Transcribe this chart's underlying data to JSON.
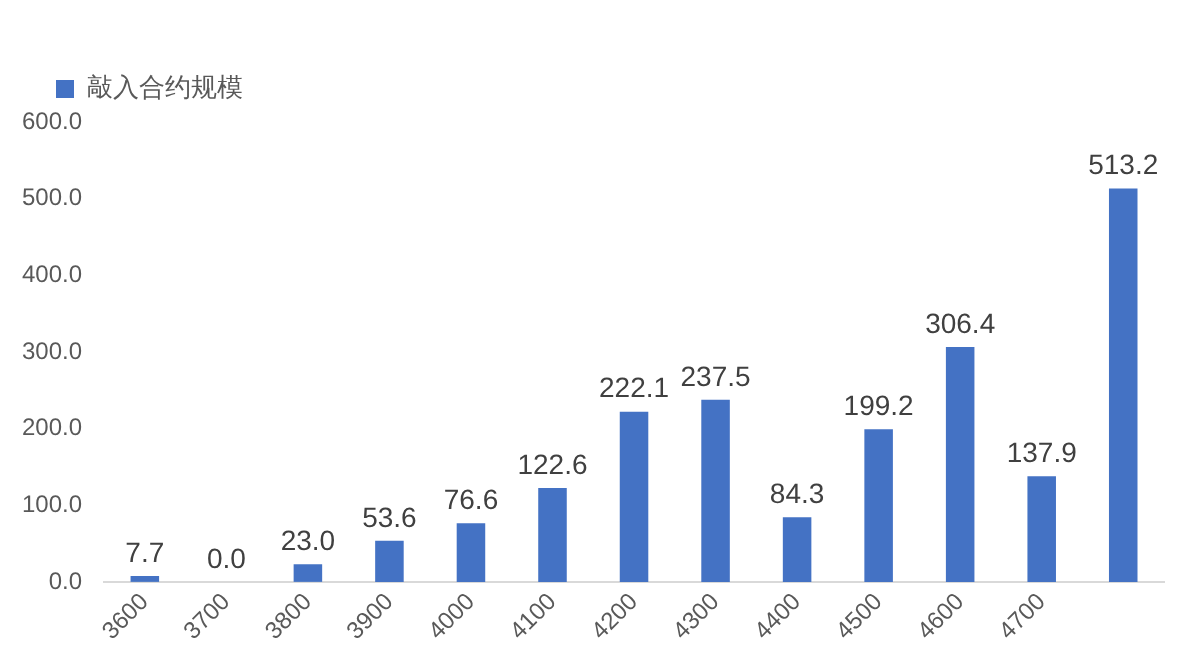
{
  "chart_data": {
    "type": "bar",
    "categories": [
      "3600",
      "3700",
      "3800",
      "3900",
      "4000",
      "4100",
      "4200",
      "4300",
      "4400",
      "4500",
      "4600",
      "4700",
      null
    ],
    "series": [
      {
        "name": "敲入合约规模",
        "color": "#4472c4",
        "values": [
          7.7,
          0.0,
          23.0,
          53.6,
          76.6,
          122.6,
          222.1,
          237.5,
          84.3,
          199.2,
          306.4,
          137.9,
          513.2
        ],
        "value_labels": [
          "7.7",
          "0.0",
          "23.0",
          "53.6",
          "76.6",
          "122.6",
          "222.1",
          "237.5",
          "84.3",
          "199.2",
          "306.4",
          "137.9",
          "513.2"
        ]
      }
    ],
    "ylim": [
      0,
      600
    ],
    "yticks": [
      {
        "value": 0,
        "label": "0.0"
      },
      {
        "value": 100,
        "label": "100.0"
      },
      {
        "value": 200,
        "label": "200.0"
      },
      {
        "value": 300,
        "label": "300.0"
      },
      {
        "value": 400,
        "label": "400.0"
      },
      {
        "value": 500,
        "label": "500.0"
      },
      {
        "value": 600,
        "label": "600.0"
      }
    ],
    "legend": "top left",
    "grid": false
  }
}
